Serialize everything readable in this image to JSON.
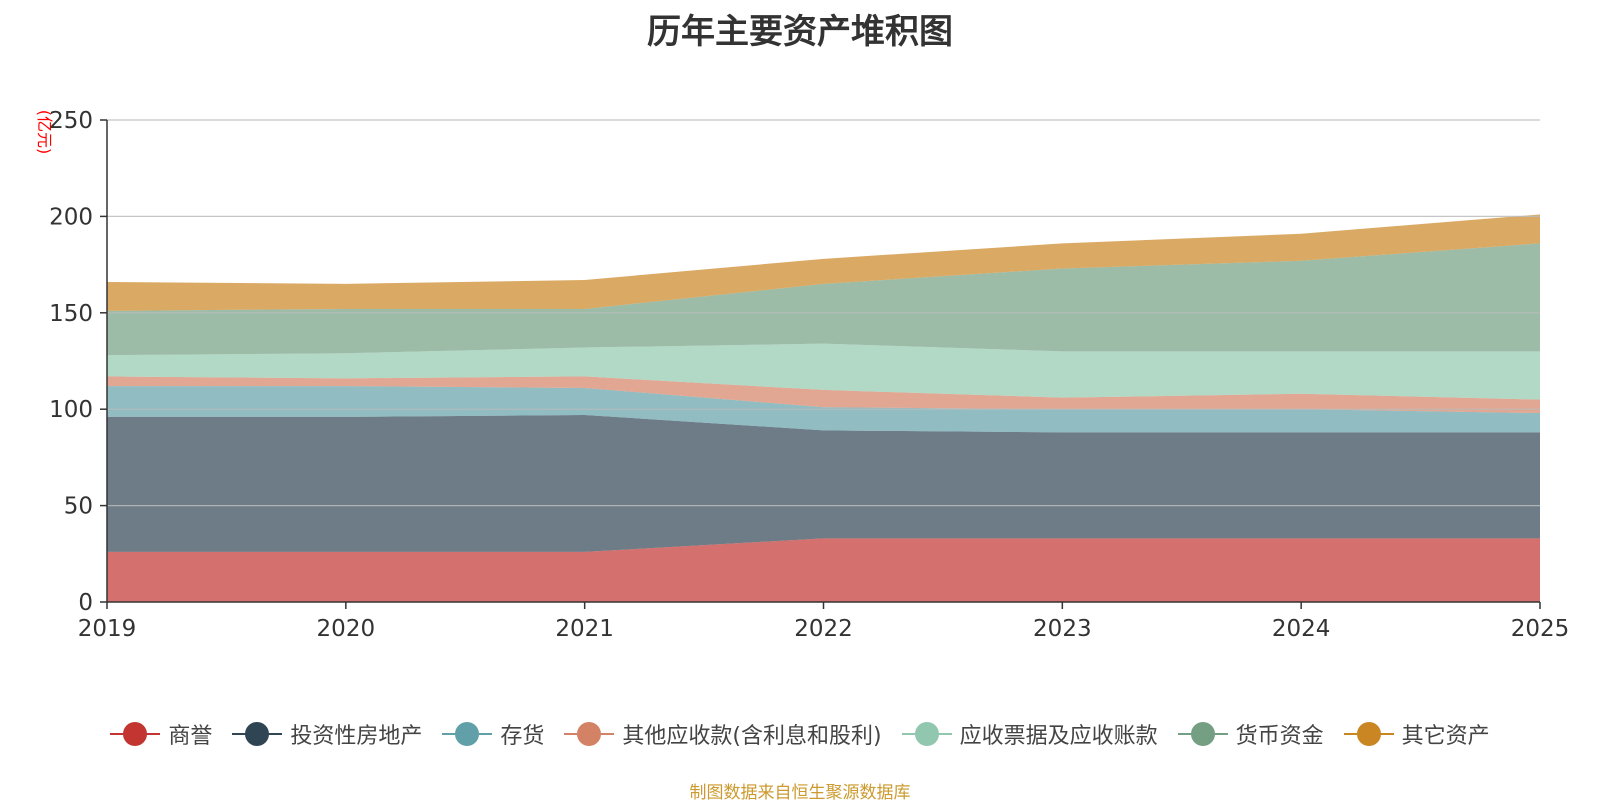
{
  "title": "历年主要资产堆积图",
  "unit_label": "(亿元)",
  "source_note": "制图数据来自恒生聚源数据库",
  "chart_data": {
    "type": "area",
    "stacked": true,
    "title": "历年主要资产堆积图",
    "ylabel": "(亿元)",
    "xlabel": "",
    "x": [
      "2019",
      "2020",
      "2021",
      "2022",
      "2023",
      "2024",
      "2025"
    ],
    "ylim": [
      0,
      250
    ],
    "yticks": [
      "0",
      "50",
      "100",
      "150",
      "200",
      "250"
    ],
    "grid": true,
    "legend_position": "bottom",
    "series": [
      {
        "name": "商誉",
        "color": "#c23531",
        "values": [
          26,
          26,
          26,
          33,
          33,
          33,
          33
        ]
      },
      {
        "name": "投资性房地产",
        "color": "#2f4554",
        "values": [
          70,
          70,
          71,
          56,
          55,
          55,
          55
        ]
      },
      {
        "name": "存货",
        "color": "#61a0a8",
        "values": [
          16,
          16,
          14,
          12,
          12,
          12,
          10
        ]
      },
      {
        "name": "其他应收款(含利息和股利)",
        "color": "#d48265",
        "values": [
          5,
          4,
          6,
          9,
          6,
          8,
          7
        ]
      },
      {
        "name": "应收票据及应收账款",
        "color": "#91c7ae",
        "values": [
          11,
          13,
          15,
          24,
          24,
          22,
          25
        ]
      },
      {
        "name": "货币资金",
        "color": "#749f83",
        "values": [
          23,
          23,
          20,
          31,
          43,
          47,
          56
        ]
      },
      {
        "name": "其它资产",
        "color": "#ca8622",
        "values": [
          15,
          13,
          15,
          13,
          13,
          14,
          15
        ]
      }
    ]
  }
}
